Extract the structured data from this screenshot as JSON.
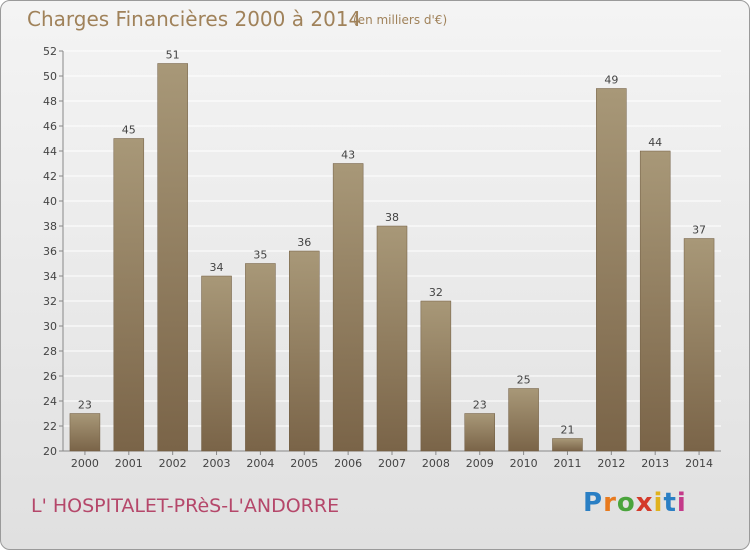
{
  "header": {
    "title": "Charges Financières 2000 à 2014",
    "subtitle": "(en milliers d'€)"
  },
  "footer": {
    "commune": "L' HOSPITALET-PRèS-L'ANDORRE",
    "logo_text": "Proxiti",
    "logo_colors": [
      "#2a7fc4",
      "#e87a1e",
      "#4aa43c",
      "#d43a2a",
      "#e0b21e",
      "#2a7fc4",
      "#c43a8a"
    ]
  },
  "colors": {
    "bar_fill_top": "#a89878",
    "bar_fill_bottom": "#7a6448",
    "grid": "#ffffff",
    "axis": "#888888",
    "label": "#444444"
  },
  "chart_data": {
    "type": "bar",
    "title": "Charges Financières 2000 à 2014",
    "subtitle": "(en milliers d'€)",
    "categories": [
      "2000",
      "2001",
      "2002",
      "2003",
      "2004",
      "2005",
      "2006",
      "2007",
      "2008",
      "2009",
      "2010",
      "2011",
      "2012",
      "2013",
      "2014"
    ],
    "values": [
      23,
      45,
      51,
      34,
      35,
      36,
      43,
      38,
      32,
      23,
      25,
      21,
      49,
      44,
      37
    ],
    "ylim": [
      20,
      52
    ],
    "yticks": [
      20,
      22,
      24,
      26,
      28,
      30,
      32,
      34,
      36,
      38,
      40,
      42,
      44,
      46,
      48,
      50,
      52
    ],
    "grid": true,
    "data_labels": true
  }
}
